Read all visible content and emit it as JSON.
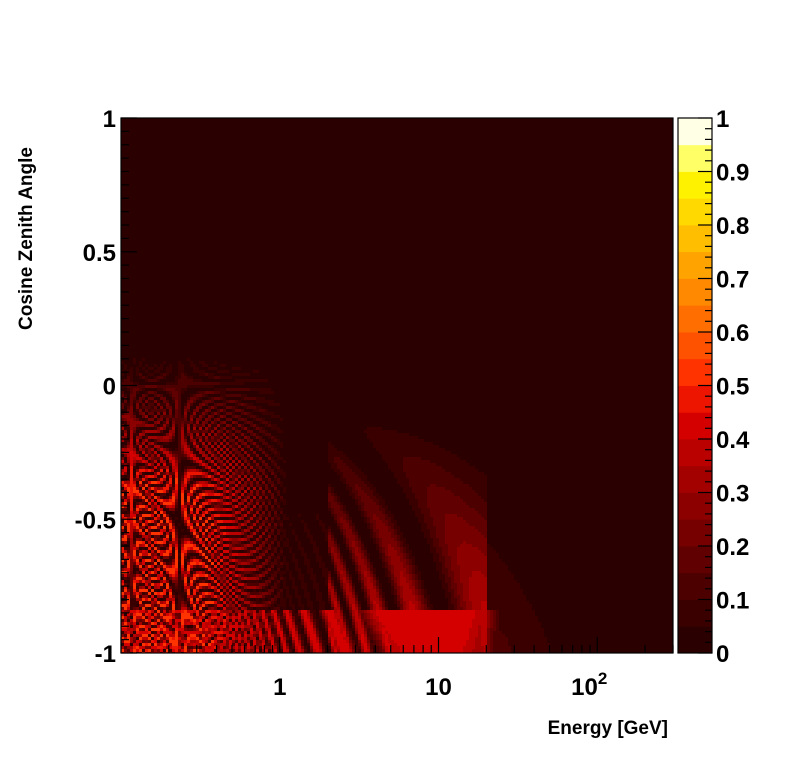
{
  "chart_data": {
    "type": "heatmap",
    "title": "",
    "xlabel": "Energy [GeV]",
    "ylabel": "Cosine Zenith Angle",
    "x_scale": "log",
    "xlim": [
      0.1,
      300
    ],
    "ylim": [
      -1,
      1
    ],
    "x_ticks": [
      {
        "value": 1,
        "label": "1"
      },
      {
        "value": 10,
        "label": "10"
      },
      {
        "value": 100,
        "label": "10",
        "exponent": "2"
      }
    ],
    "y_ticks": [
      {
        "value": 1,
        "label": "1"
      },
      {
        "value": 0.5,
        "label": "0.5"
      },
      {
        "value": 0,
        "label": "0"
      },
      {
        "value": -0.5,
        "label": "-0.5"
      },
      {
        "value": -1,
        "label": "-1"
      }
    ],
    "z_range": [
      0,
      1
    ],
    "colorbar": {
      "labels": [
        "0",
        "0.1",
        "0.2",
        "0.3",
        "0.4",
        "0.5",
        "0.6",
        "0.7",
        "0.8",
        "0.9",
        "1"
      ],
      "label_values": [
        0,
        0.1,
        0.2,
        0.3,
        0.4,
        0.5,
        0.6,
        0.7,
        0.8,
        0.9,
        1
      ],
      "levels": 20,
      "colors": [
        "#2a0000",
        "#3a0000",
        "#4d0000",
        "#610000",
        "#760000",
        "#8c0000",
        "#a30000",
        "#bb0000",
        "#d40000",
        "#ee1500",
        "#ff3300",
        "#ff5200",
        "#ff6e00",
        "#ff8900",
        "#ffa300",
        "#ffbe00",
        "#ffd900",
        "#fff200",
        "#ffff66",
        "#ffffe6"
      ]
    },
    "background_value": 0.02,
    "features": [
      {
        "name": "low-energy upward-going oscillation band",
        "energy_range": [
          0.1,
          1.0
        ],
        "coszen_range": [
          -1.0,
          0.15
        ],
        "max_value": 0.55
      },
      {
        "name": "first oscillation maximum",
        "energy_range": [
          4,
          14
        ],
        "coszen_range": [
          -1.0,
          -0.45
        ],
        "max_value": 0.4
      },
      {
        "name": "outer shoulder of first maximum",
        "energy_range": [
          2,
          20
        ],
        "coszen_range": [
          -0.8,
          0.0
        ],
        "max_value": 0.15
      },
      {
        "name": "core-crossing resonance band",
        "energy_range": [
          0.1,
          20
        ],
        "coszen_range": [
          -1.0,
          -0.84
        ],
        "max_value": 0.45
      }
    ]
  }
}
